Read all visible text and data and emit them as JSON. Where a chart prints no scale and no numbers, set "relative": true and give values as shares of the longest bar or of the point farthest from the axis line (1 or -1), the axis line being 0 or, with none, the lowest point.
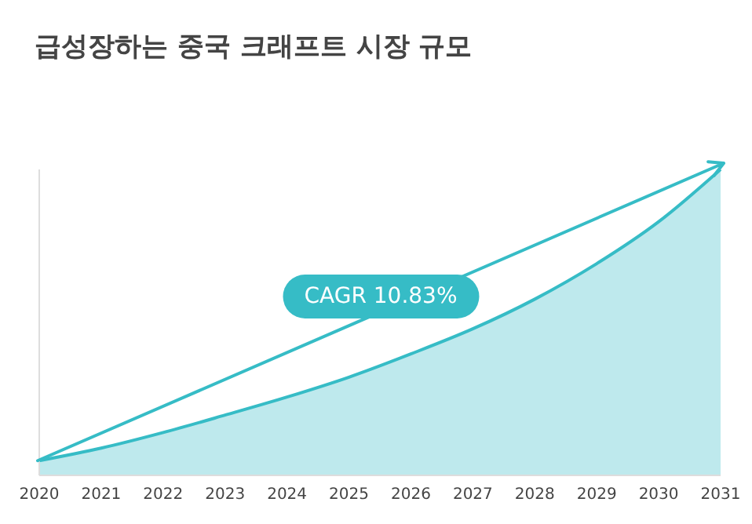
{
  "chart_data": {
    "type": "area",
    "title": "급성장하는 중국 크래프트 시장 규모",
    "relative": true,
    "categories": [
      "2020",
      "2021",
      "2022",
      "2023",
      "2024",
      "2025",
      "2026",
      "2027",
      "2028",
      "2029",
      "2030",
      "2031"
    ],
    "series": [
      {
        "color": "#36bcc6",
        "values": [
          0.048,
          0.089,
          0.14,
          0.197,
          0.256,
          0.321,
          0.397,
          0.479,
          0.576,
          0.692,
          0.829,
          1
        ]
      }
    ],
    "annotations": [
      "CAGR 10.83%"
    ],
    "grid": false,
    "legend": false
  }
}
